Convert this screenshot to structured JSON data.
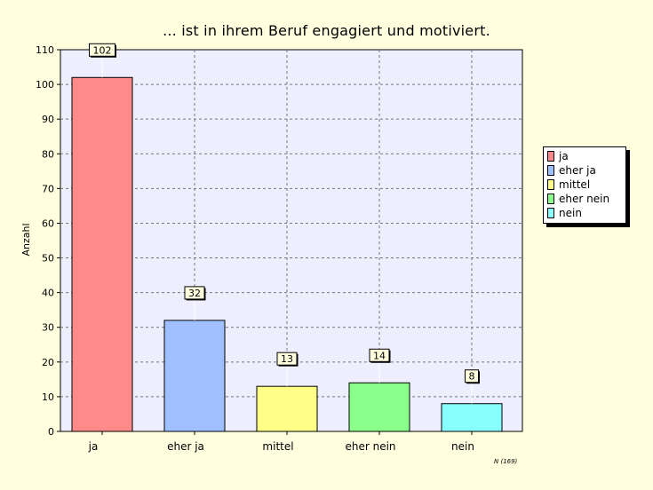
{
  "chart_data": {
    "type": "bar",
    "title": "... ist in ihrem Beruf engagiert und motiviert.",
    "ylabel": "Anzahl",
    "xlabel": "",
    "categories": [
      "ja",
      "eher ja",
      "mittel",
      "eher nein",
      "nein"
    ],
    "values": [
      102,
      32,
      13,
      14,
      8
    ],
    "data_labels": [
      "102",
      "32",
      "13",
      "14",
      "8"
    ],
    "colors": [
      "#ff8a8a",
      "#a0bfff",
      "#ffff88",
      "#8aff8a",
      "#88ffff"
    ],
    "ylim": [
      0,
      110
    ],
    "yticks": [
      0,
      10,
      20,
      30,
      40,
      50,
      60,
      70,
      80,
      90,
      100,
      110
    ],
    "grid": true,
    "legend_position": "right",
    "legend": [
      "ja",
      "eher ja",
      "mittel",
      "eher nein",
      "nein"
    ],
    "plot_background": "#eeeeff",
    "page_background": "#ffffe0",
    "note": "N (169)"
  }
}
